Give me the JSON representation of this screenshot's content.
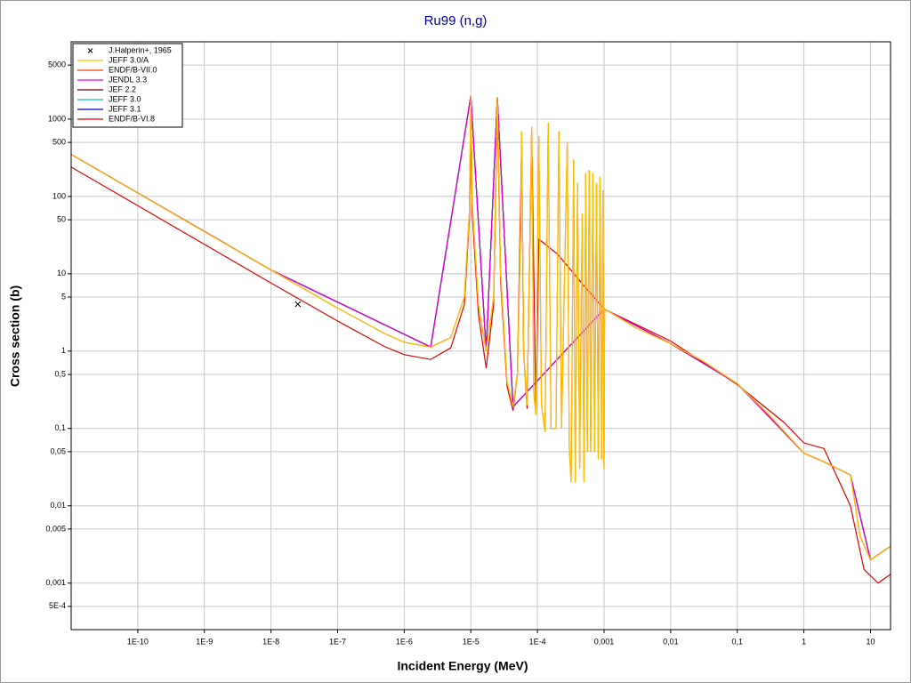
{
  "chart_data": {
    "type": "line",
    "title": "Ru99 (n,g)",
    "x_label": "Incident Energy (MeV)",
    "y_label": "Cross section (b)",
    "log_x": true,
    "log_y": true,
    "grid": true,
    "legend": "top-left",
    "xlim": [
      1e-11,
      20
    ],
    "ylim": [
      0.00025,
      10000
    ],
    "xticks": [
      {
        "value": 1e-10,
        "label": "1E-10"
      },
      {
        "value": 1e-09,
        "label": "1E-9"
      },
      {
        "value": 1e-08,
        "label": "1E-8"
      },
      {
        "value": 1e-07,
        "label": "1E-7"
      },
      {
        "value": 1e-06,
        "label": "1E-6"
      },
      {
        "value": 1e-05,
        "label": "1E-5"
      },
      {
        "value": 0.0001,
        "label": "1E-4"
      },
      {
        "value": 0.001,
        "label": "0,001"
      },
      {
        "value": 0.01,
        "label": "0,01"
      },
      {
        "value": 0.1,
        "label": "0,1"
      },
      1,
      10
    ],
    "yticks": [
      {
        "value": 0.0005,
        "label": "5E-4"
      },
      {
        "value": 0.001,
        "label": "0,001"
      },
      {
        "value": 0.005,
        "label": "0,005"
      },
      {
        "value": 0.01,
        "label": "0,01"
      },
      {
        "value": 0.05,
        "label": "0,05"
      },
      {
        "value": 0.1,
        "label": "0,1"
      },
      {
        "value": 0.5,
        "label": "0,5"
      },
      1,
      5,
      10,
      50,
      100,
      500,
      1000,
      5000
    ],
    "series": [
      {
        "name": "J.Halperin+, 1965",
        "color": "#000000",
        "marker": "x",
        "x": [
          2.53e-08
        ],
        "values": [
          4.05
        ]
      },
      {
        "name": "JEFF 3.0/A",
        "color": "#ffc000",
        "x": [
          1e-11,
          1e-10,
          1e-09,
          1e-08,
          1e-07,
          5e-07,
          1e-06,
          2.5e-06,
          5e-06,
          8e-06,
          9.5e-06,
          1e-05,
          1.05e-05,
          1.3e-05,
          1.7e-05,
          2.2e-05,
          2.5e-05,
          2.8e-05,
          3.5e-05,
          4.3e-05,
          5e-05,
          5.6e-05,
          5.8e-05,
          6.2e-05,
          7e-05,
          8.2e-05,
          8.8e-05,
          9.5e-05,
          0.000105,
          0.000115,
          0.00013,
          0.000145,
          0.00016,
          0.00019,
          0.00021,
          0.00023,
          0.00028,
          0.0003,
          0.00032,
          0.00035,
          0.00037,
          0.0004,
          0.00043,
          0.00047,
          0.0005,
          0.00053,
          0.00056,
          0.0006,
          0.00063,
          0.00068,
          0.00072,
          0.00077,
          0.00082,
          0.00087,
          0.00092,
          0.00096,
          0.001,
          0.00102,
          0.003,
          0.01,
          0.03,
          0.1,
          0.3,
          1,
          2,
          5,
          7,
          10,
          20
        ],
        "values": [
          350,
          111,
          35,
          11.2,
          3.6,
          1.7,
          1.3,
          1.13,
          1.5,
          5,
          60,
          2000,
          80,
          4,
          1.0,
          5,
          1900,
          10,
          0.4,
          0.19,
          0.5,
          40,
          700,
          1,
          0.2,
          800,
          0.3,
          0.15,
          600,
          0.2,
          0.09,
          900,
          0.1,
          0.1,
          700,
          0.1,
          500,
          0.06,
          0.02,
          300,
          0.02,
          150,
          0.03,
          60,
          0.02,
          200,
          0.05,
          220,
          0.05,
          200,
          0.05,
          150,
          0.04,
          180,
          0.04,
          120,
          0.03,
          3.5,
          2,
          1.25,
          0.75,
          0.38,
          0.15,
          0.048,
          0.037,
          0.025,
          0.004,
          0.002,
          0.003
        ]
      },
      {
        "name": "ENDF/B-VII.0",
        "color": "#ff4000",
        "x": [
          1e-11,
          1e-10,
          1e-09,
          1e-08,
          1e-07,
          5e-07,
          1e-06,
          2.5e-06,
          5e-06,
          8e-06,
          9.5e-06,
          1e-05,
          1.05e-05,
          1.3e-05,
          1.7e-05,
          2.2e-05,
          2.5e-05,
          2.8e-05,
          3.5e-05,
          4.3e-05,
          5e-05,
          5.6e-05,
          5.8e-05,
          6.2e-05,
          7e-05,
          8.2e-05,
          8.8e-05,
          9.5e-05,
          0.000105,
          0.000115,
          0.00013,
          0.000145,
          0.00016,
          0.00019,
          0.00021,
          0.00023,
          0.00028,
          0.0003,
          0.00032,
          0.00035,
          0.00037,
          0.0004,
          0.00043,
          0.00047,
          0.0005,
          0.00053,
          0.00056,
          0.0006,
          0.00063,
          0.00068,
          0.00072,
          0.00077,
          0.00082,
          0.00087,
          0.00092,
          0.00096,
          0.001,
          0.00102,
          0.003,
          0.01,
          0.03,
          0.1,
          0.3,
          1,
          2,
          5,
          7,
          10,
          20
        ],
        "values": [
          350,
          111,
          35,
          11.2,
          3.6,
          1.7,
          1.3,
          1.13,
          1.5,
          5,
          60,
          2000,
          80,
          4,
          1.0,
          5,
          1900,
          10,
          0.4,
          0.19,
          0.5,
          40,
          700,
          1,
          0.2,
          800,
          0.3,
          0.15,
          600,
          0.2,
          0.09,
          900,
          0.1,
          0.1,
          700,
          0.1,
          500,
          0.06,
          0.02,
          300,
          0.02,
          150,
          0.03,
          60,
          0.02,
          200,
          0.05,
          220,
          0.05,
          200,
          0.05,
          150,
          0.04,
          180,
          0.04,
          120,
          0.03,
          3.5,
          2,
          1.25,
          0.75,
          0.38,
          0.15,
          0.048,
          0.037,
          0.025,
          0.004,
          0.002,
          0.003
        ]
      },
      {
        "name": "JENDL 3.3",
        "color": "#e000e0",
        "x": [
          1e-11,
          1e-08,
          2.5e-06,
          1e-05,
          1.7e-05,
          2.5e-05,
          4.3e-05,
          0.001,
          0.01,
          0.1,
          1,
          2,
          5,
          10,
          20
        ],
        "values": [
          350,
          11.2,
          1.13,
          2000,
          1.0,
          1900,
          0.19,
          3.5,
          1.25,
          0.38,
          0.048,
          0.037,
          0.025,
          0.002,
          0.003
        ]
      },
      {
        "name": "JEF 2.2",
        "color": "#600000",
        "x": [
          1e-11,
          1e-08,
          2.5e-06,
          1e-05,
          1.7e-05,
          2.5e-05,
          4.3e-05,
          0.001,
          0.01,
          0.1,
          1,
          2,
          5,
          10,
          20
        ],
        "values": [
          350,
          11.2,
          1.13,
          2000,
          1.0,
          1900,
          0.19,
          3.5,
          1.25,
          0.38,
          0.048,
          0.037,
          0.025,
          0.002,
          0.003
        ]
      },
      {
        "name": "JEFF 3.0",
        "color": "#00c0c0",
        "x": [
          1e-11,
          1e-08,
          2.5e-06,
          1e-05,
          1.7e-05,
          2.5e-05,
          4.3e-05,
          0.001,
          0.01,
          0.1,
          1,
          2,
          5,
          10,
          20
        ],
        "values": [
          350,
          11.2,
          1.13,
          2000,
          1.0,
          1900,
          0.19,
          3.5,
          1.25,
          0.38,
          0.048,
          0.037,
          0.025,
          0.002,
          0.003
        ]
      },
      {
        "name": "JEFF 3.1",
        "color": "#0000c0",
        "x": [
          1e-11,
          1e-08,
          2.5e-06,
          1e-05,
          1.7e-05,
          2.5e-05,
          4.3e-05,
          0.001,
          0.01,
          0.1,
          1,
          2,
          5,
          10,
          20
        ],
        "values": [
          350,
          11.2,
          1.13,
          2000,
          1.0,
          1900,
          0.19,
          3.5,
          1.25,
          0.38,
          0.048,
          0.037,
          0.025,
          0.002,
          0.003
        ]
      },
      {
        "name": "ENDF/B-VI.8",
        "color": "#e00000",
        "x": [
          1e-11,
          1e-10,
          1e-09,
          1e-08,
          1e-07,
          5e-07,
          1e-06,
          2.5e-06,
          5e-06,
          8e-06,
          9.5e-06,
          1e-05,
          1.05e-05,
          1.3e-05,
          1.7e-05,
          2.2e-05,
          2.5e-05,
          2.8e-05,
          3.5e-05,
          4.3e-05,
          5e-05,
          5.8e-05,
          6.2e-05,
          7e-05,
          8.2e-05,
          9.5e-05,
          0.000105,
          0.0002,
          0.0005,
          0.001,
          0.01,
          0.1,
          0.5,
          1,
          2,
          5,
          8,
          13,
          20
        ],
        "values": [
          240,
          76,
          24,
          7.6,
          2.45,
          1.15,
          0.9,
          0.78,
          1.1,
          4,
          50,
          800,
          60,
          3,
          0.6,
          4,
          1500,
          8,
          0.35,
          0.17,
          0.5,
          500,
          1,
          0.18,
          700,
          0.15,
          28,
          18,
          7,
          3.5,
          1.35,
          0.37,
          0.12,
          0.065,
          0.055,
          0.01,
          0.0015,
          0.001,
          0.0013
        ]
      }
    ]
  }
}
